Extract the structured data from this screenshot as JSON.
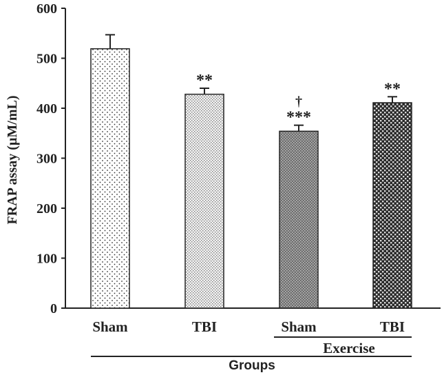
{
  "chart_data": {
    "type": "bar",
    "title": "",
    "xlabel": "Groups",
    "ylabel": "FRAP assay (µM/mL)",
    "ylim": [
      0,
      600
    ],
    "yticks": [
      0,
      100,
      200,
      300,
      400,
      500,
      600
    ],
    "categories": [
      "Sham",
      "TBI",
      "Sham",
      "TBI"
    ],
    "values": [
      519,
      428,
      354,
      411
    ],
    "errors": [
      28,
      12,
      12,
      12
    ],
    "significance": [
      "",
      "**",
      "***",
      "**"
    ],
    "secondary_marks": [
      "",
      "",
      "†",
      ""
    ],
    "patterns": [
      "sparse-dots",
      "fine-dots",
      "dense-dots",
      "checker"
    ],
    "bracket_label": "Exercise"
  }
}
